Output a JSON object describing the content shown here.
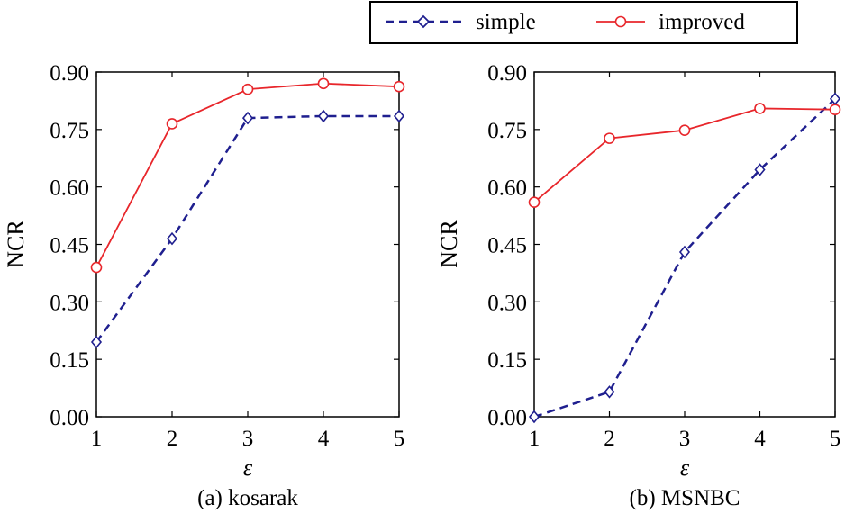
{
  "legend": {
    "entries": [
      {
        "label": "simple",
        "color": "#1f1f8f",
        "marker": "diamond",
        "line": "dashed"
      },
      {
        "label": "improved",
        "color": "#e8262b",
        "marker": "circle",
        "line": "solid"
      }
    ]
  },
  "chart_data": [
    {
      "type": "line",
      "caption": "(a) kosarak",
      "xlabel": "ε",
      "ylabel": "NCR",
      "x": [
        1,
        2,
        3,
        4,
        5
      ],
      "xlim": [
        1,
        5
      ],
      "ylim": [
        0,
        0.9
      ],
      "yticks": [
        "0.00",
        "0.15",
        "0.30",
        "0.45",
        "0.60",
        "0.75",
        "0.90"
      ],
      "xticks": [
        "1",
        "2",
        "3",
        "4",
        "5"
      ],
      "grid": false,
      "series": [
        {
          "name": "simple",
          "values": [
            0.195,
            0.465,
            0.78,
            0.785,
            0.785
          ]
        },
        {
          "name": "improved",
          "values": [
            0.39,
            0.765,
            0.855,
            0.87,
            0.862
          ]
        }
      ]
    },
    {
      "type": "line",
      "caption": "(b) MSNBC",
      "xlabel": "ε",
      "ylabel": "NCR",
      "x": [
        1,
        2,
        3,
        4,
        5
      ],
      "xlim": [
        1,
        5
      ],
      "ylim": [
        0,
        0.9
      ],
      "yticks": [
        "0.00",
        "0.15",
        "0.30",
        "0.45",
        "0.60",
        "0.75",
        "0.90"
      ],
      "xticks": [
        "1",
        "2",
        "3",
        "4",
        "5"
      ],
      "grid": false,
      "series": [
        {
          "name": "simple",
          "values": [
            0.0,
            0.065,
            0.43,
            0.645,
            0.83
          ]
        },
        {
          "name": "improved",
          "values": [
            0.56,
            0.727,
            0.748,
            0.805,
            0.802
          ]
        }
      ]
    }
  ]
}
